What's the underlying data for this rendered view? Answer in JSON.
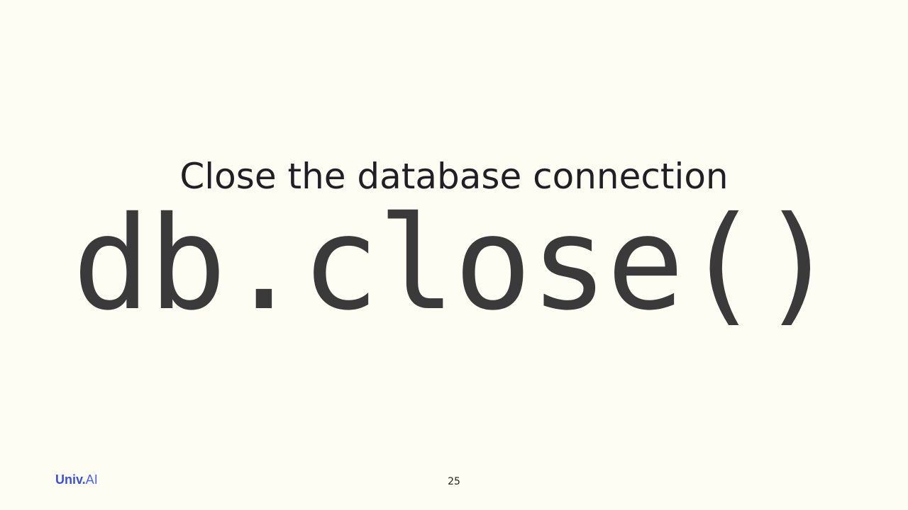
{
  "slide": {
    "title": "Close the database connection",
    "code": "db.close()",
    "page_number": "25"
  },
  "logo": {
    "main": "Univ",
    "separator": ".",
    "suffix": "AI"
  },
  "colors": {
    "background": "#fdfdf4",
    "title": "#1f1f24",
    "code": "#3a3a3a",
    "logo_main": "#3b4fd8",
    "logo_suffix": "#4f63e6"
  }
}
